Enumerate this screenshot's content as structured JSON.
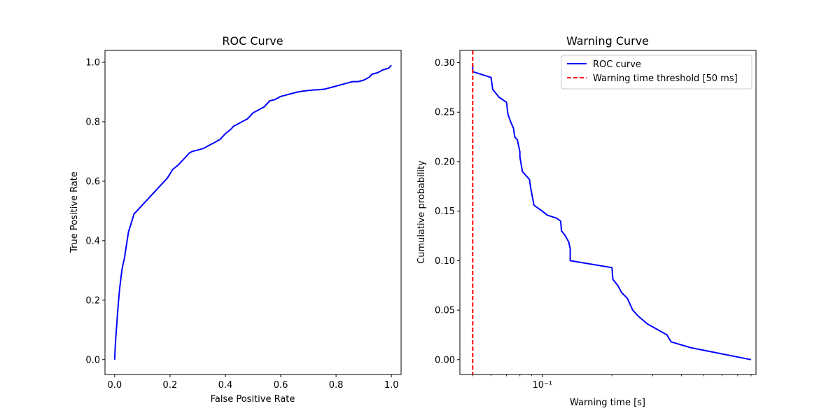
{
  "chart_data": [
    {
      "type": "line",
      "title": "ROC Curve",
      "xlabel": "False Positive Rate",
      "ylabel": "True Positive Rate",
      "xlim": [
        -0.035,
        1.035
      ],
      "ylim": [
        -0.05,
        1.04
      ],
      "xticks": [
        0.0,
        0.2,
        0.4,
        0.6,
        0.8,
        1.0
      ],
      "xtick_labels": [
        "0.0",
        "0.2",
        "0.4",
        "0.6",
        "0.8",
        "1.0"
      ],
      "yticks": [
        0.0,
        0.2,
        0.4,
        0.6,
        0.8,
        1.0
      ],
      "ytick_labels": [
        "0.0",
        "0.2",
        "0.4",
        "0.6",
        "0.8",
        "1.0"
      ],
      "grid": false,
      "series": [
        {
          "color": "#0000ff",
          "x": [
            0.0,
            0.003,
            0.006,
            0.01,
            0.014,
            0.018,
            0.022,
            0.026,
            0.03,
            0.035,
            0.04,
            0.045,
            0.05,
            0.06,
            0.07,
            0.08,
            0.09,
            0.1,
            0.11,
            0.12,
            0.13,
            0.14,
            0.15,
            0.17,
            0.19,
            0.21,
            0.23,
            0.24,
            0.25,
            0.26,
            0.27,
            0.28,
            0.3,
            0.32,
            0.34,
            0.36,
            0.38,
            0.4,
            0.42,
            0.43,
            0.44,
            0.46,
            0.48,
            0.5,
            0.52,
            0.54,
            0.56,
            0.58,
            0.6,
            0.62,
            0.64,
            0.66,
            0.68,
            0.7,
            0.72,
            0.74,
            0.76,
            0.78,
            0.8,
            0.82,
            0.84,
            0.86,
            0.88,
            0.9,
            0.92,
            0.93,
            0.95,
            0.97,
            0.99,
            1.0
          ],
          "y": [
            0.0,
            0.06,
            0.1,
            0.15,
            0.2,
            0.24,
            0.27,
            0.3,
            0.32,
            0.34,
            0.37,
            0.4,
            0.43,
            0.46,
            0.49,
            0.5,
            0.51,
            0.52,
            0.53,
            0.54,
            0.55,
            0.56,
            0.57,
            0.59,
            0.61,
            0.64,
            0.655,
            0.665,
            0.675,
            0.685,
            0.695,
            0.7,
            0.705,
            0.71,
            0.72,
            0.73,
            0.74,
            0.76,
            0.775,
            0.785,
            0.79,
            0.8,
            0.81,
            0.83,
            0.84,
            0.85,
            0.87,
            0.875,
            0.885,
            0.89,
            0.895,
            0.9,
            0.903,
            0.905,
            0.907,
            0.908,
            0.91,
            0.915,
            0.92,
            0.925,
            0.93,
            0.935,
            0.935,
            0.94,
            0.95,
            0.96,
            0.965,
            0.975,
            0.98,
            0.99
          ]
        }
      ]
    },
    {
      "type": "line",
      "title": "Warning Curve",
      "xlabel": "Warning time [s]",
      "ylabel": "Cumulative probability",
      "xscale": "log",
      "xlim": [
        0.044,
        0.84
      ],
      "ylim": [
        -0.015,
        0.3124
      ],
      "xticks_major": [
        0.1
      ],
      "xtick_labels": [
        "10⁻¹"
      ],
      "xticks_minor": [
        0.05,
        0.06,
        0.07,
        0.08,
        0.09,
        0.2,
        0.3,
        0.4,
        0.5,
        0.6,
        0.7,
        0.8
      ],
      "yticks": [
        0.0,
        0.05,
        0.1,
        0.15,
        0.2,
        0.25,
        0.3
      ],
      "ytick_labels": [
        "0.00",
        "0.05",
        "0.10",
        "0.15",
        "0.20",
        "0.25",
        "0.30"
      ],
      "grid": false,
      "legend": "top-right",
      "series": [
        {
          "name": "ROC curve",
          "color": "#0000ff",
          "style": "solid",
          "x": [
            0.05,
            0.05,
            0.06,
            0.061,
            0.065,
            0.07,
            0.071,
            0.073,
            0.075,
            0.076,
            0.078,
            0.08,
            0.08,
            0.082,
            0.088,
            0.089,
            0.092,
            0.1,
            0.105,
            0.115,
            0.12,
            0.121,
            0.125,
            0.13,
            0.132,
            0.132,
            0.2,
            0.202,
            0.212,
            0.22,
            0.233,
            0.246,
            0.26,
            0.285,
            0.346,
            0.36,
            0.44,
            0.8
          ],
          "y": [
            0.298,
            0.291,
            0.285,
            0.273,
            0.265,
            0.26,
            0.248,
            0.24,
            0.234,
            0.225,
            0.222,
            0.21,
            0.205,
            0.19,
            0.182,
            0.174,
            0.156,
            0.15,
            0.146,
            0.143,
            0.14,
            0.13,
            0.126,
            0.119,
            0.112,
            0.1,
            0.093,
            0.081,
            0.075,
            0.068,
            0.062,
            0.05,
            0.044,
            0.036,
            0.025,
            0.018,
            0.012,
            0.0
          ]
        },
        {
          "name": "Warning time threshold [50 ms]",
          "color": "#ff0000",
          "style": "dashed",
          "vline_x": 0.05
        }
      ]
    }
  ]
}
